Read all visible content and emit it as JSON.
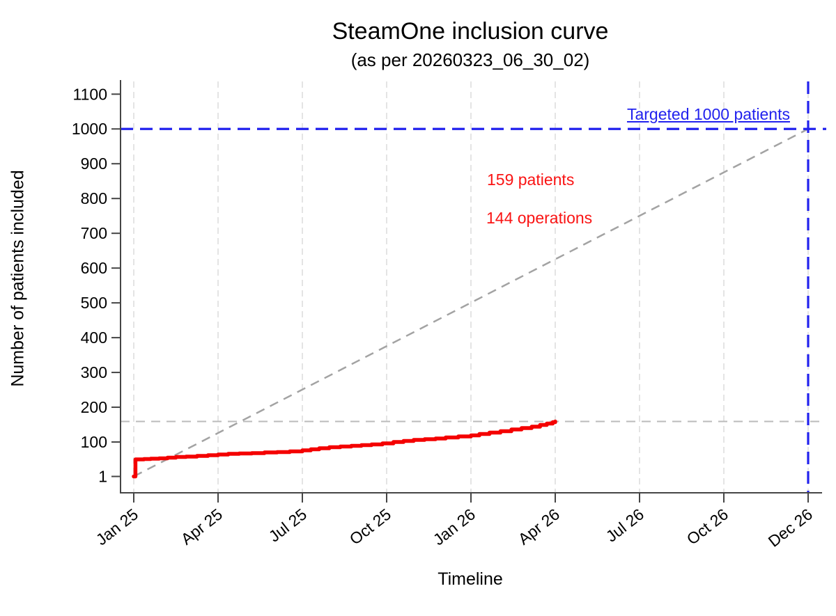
{
  "chart_data": {
    "type": "line",
    "title": "SteamOne inclusion curve",
    "subtitle": "(as per 20260323_06_30_02)",
    "xlabel": "Timeline",
    "ylabel": "Number of patients included",
    "x_unit": "tick_index",
    "x_tick_labels": [
      "Jan 25",
      "Apr 25",
      "Jul 25",
      "Oct 25",
      "Jan 26",
      "Apr 26",
      "Jul 26",
      "Oct 26",
      "Dec 26"
    ],
    "y_tick_values": [
      1,
      100,
      200,
      300,
      400,
      500,
      600,
      700,
      800,
      900,
      1000,
      1100
    ],
    "ylim": [
      1,
      1140
    ],
    "grid": "vertical-dashed",
    "legend": "none",
    "colors": {
      "inclusion_red": "#f40000",
      "annotation_red": "#fa1414",
      "target_blue": "#2222ee",
      "projection_gray": "#a3a3a3",
      "current_gray": "#bbbbbb",
      "gridline": "#e4e4e4",
      "axis": "#454545"
    },
    "series": [
      {
        "name": "actual-inclusion",
        "style": "solid-step",
        "points": [
          [
            0,
            1
          ],
          [
            0.02,
            50
          ],
          [
            0.12,
            51
          ],
          [
            0.2,
            52
          ],
          [
            0.3,
            53
          ],
          [
            0.4,
            55
          ],
          [
            0.5,
            57
          ],
          [
            0.62,
            58
          ],
          [
            0.75,
            60
          ],
          [
            0.88,
            62
          ],
          [
            1.0,
            64
          ],
          [
            1.12,
            66
          ],
          [
            1.25,
            67
          ],
          [
            1.4,
            68
          ],
          [
            1.55,
            70
          ],
          [
            1.7,
            71
          ],
          [
            1.85,
            73
          ],
          [
            2.0,
            76
          ],
          [
            2.1,
            79
          ],
          [
            2.2,
            82
          ],
          [
            2.32,
            85
          ],
          [
            2.45,
            87
          ],
          [
            2.58,
            89
          ],
          [
            2.7,
            91
          ],
          [
            2.82,
            93
          ],
          [
            2.95,
            96
          ],
          [
            3.08,
            100
          ],
          [
            3.2,
            103
          ],
          [
            3.32,
            106
          ],
          [
            3.45,
            108
          ],
          [
            3.58,
            110
          ],
          [
            3.7,
            113
          ],
          [
            3.85,
            116
          ],
          [
            4.0,
            119
          ],
          [
            4.1,
            123
          ],
          [
            4.22,
            127
          ],
          [
            4.35,
            131
          ],
          [
            4.48,
            136
          ],
          [
            4.6,
            140
          ],
          [
            4.72,
            144
          ],
          [
            4.82,
            149
          ],
          [
            4.9,
            153
          ],
          [
            4.97,
            157
          ],
          [
            5.0,
            159
          ]
        ]
      },
      {
        "name": "target-projection",
        "style": "dashed",
        "points": [
          [
            0,
            1
          ],
          [
            8,
            1000
          ]
        ]
      }
    ],
    "reference_lines": [
      {
        "name": "current-count-hline",
        "orientation": "horizontal",
        "value": 159
      },
      {
        "name": "target-hline",
        "orientation": "horizontal",
        "value": 1000
      },
      {
        "name": "target-vline",
        "orientation": "vertical",
        "x_tick": 8
      }
    ],
    "annotations": [
      {
        "name": "target-label",
        "text": "Targeted 1000 patients"
      },
      {
        "name": "patients-count",
        "text": "159 patients"
      },
      {
        "name": "operations-count",
        "text": "144 operations"
      }
    ],
    "current_counts": {
      "patients": 159,
      "operations": 144,
      "target_patients": 1000
    }
  }
}
